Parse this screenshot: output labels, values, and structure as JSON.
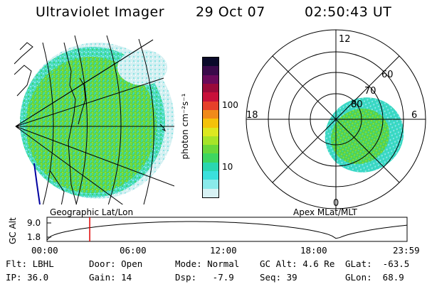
{
  "header": {
    "title": "Ultraviolet Imager",
    "date": "29 Oct 07",
    "time": "02:50:43 UT"
  },
  "colorbar": {
    "label": "photon cm⁻²s⁻¹",
    "ticks": [
      "100",
      "10"
    ],
    "colors": [
      "#0a0a2a",
      "#3a0a4a",
      "#6a0a5a",
      "#9a0a3a",
      "#c8103a",
      "#e6402a",
      "#f08a1a",
      "#f4c20a",
      "#dce820",
      "#a6e428",
      "#6ad83a",
      "#3ed660",
      "#2ad6b0",
      "#3ae0dc",
      "#8aeaea",
      "#d8f2f4"
    ]
  },
  "left_panel": {
    "caption": "Geographic Lat/Lon",
    "colors": {
      "bright": "#6ad83a",
      "mid": "#3ad8b8",
      "dim": "#a8e8e8",
      "coast": "#000000",
      "limb": "#0000a0"
    }
  },
  "right_panel": {
    "caption": "Apex MLat/MLT",
    "mlt_labels": {
      "top": "12",
      "left": "18",
      "right": "6",
      "bottom": "0"
    },
    "lat_labels": [
      "80",
      "70",
      "60"
    ]
  },
  "timeline": {
    "y_label": "GC Alt",
    "y_ticks": [
      "9.0",
      "1.8"
    ],
    "x_ticks": [
      "00:00",
      "06:00",
      "12:00",
      "18:00",
      "23:59"
    ],
    "marker_time_hours": 2.85,
    "marker_color": "#e00000"
  },
  "info": {
    "flt": "Flt: LBHL",
    "ip": "IP: 36.0",
    "door": "Door: Open",
    "gain": "Gain: 14",
    "mode": "Mode: Normal",
    "dsp": "Dsp:   -7.9",
    "gcalt": "GC Alt: 4.6 Re",
    "seq": "Seq: 39",
    "glat": "GLat:  -63.5",
    "glon": "GLon:  68.9"
  }
}
